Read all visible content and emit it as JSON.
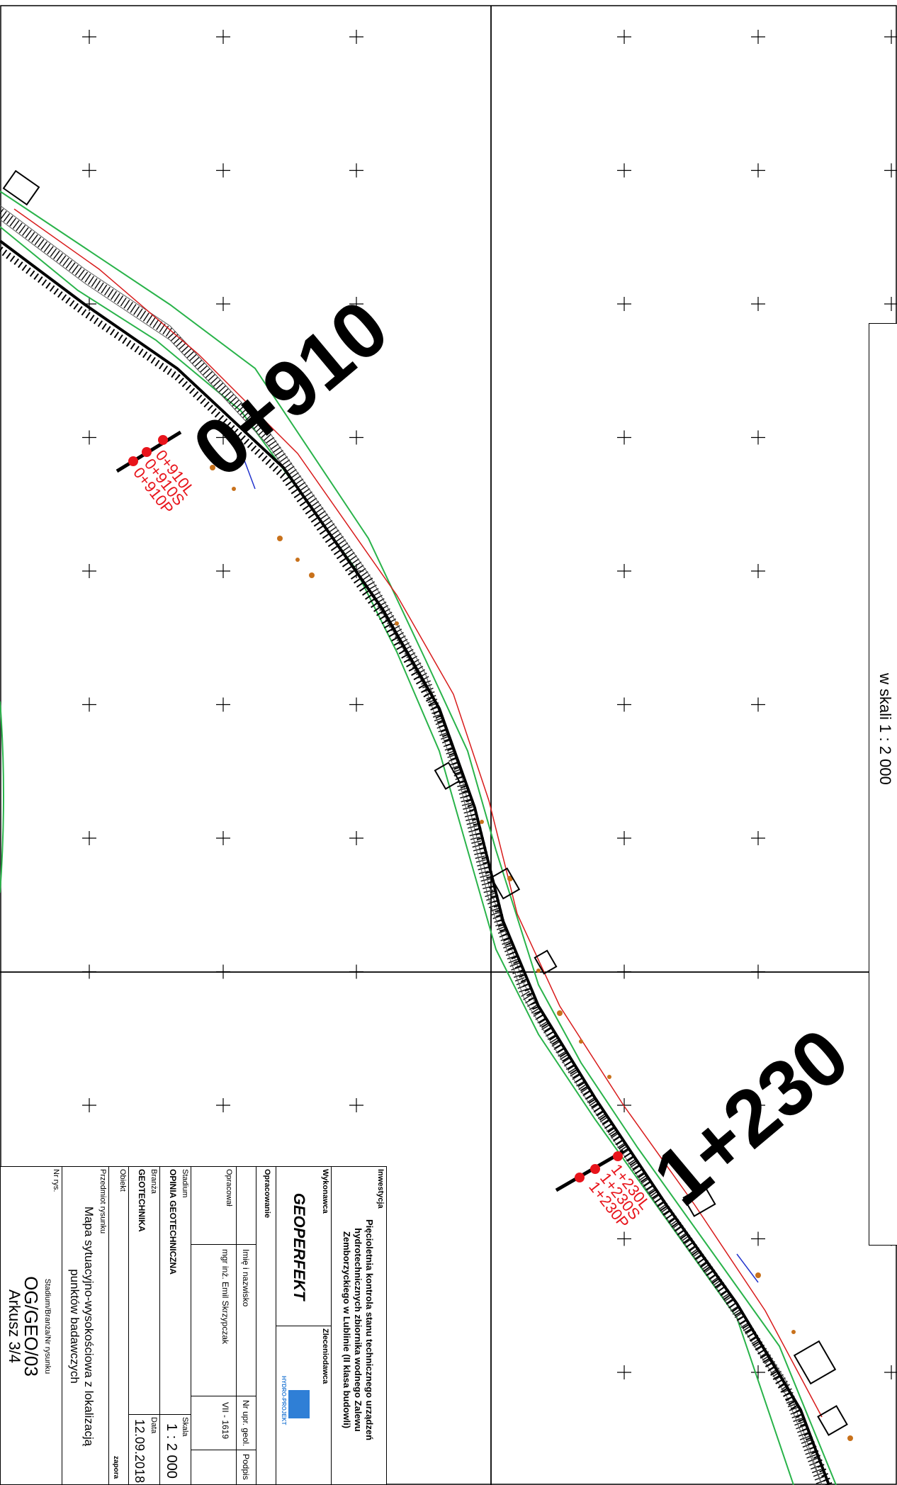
{
  "map": {
    "chainage_labels": [
      "0+910",
      "1+230"
    ],
    "profile_labels": [
      {
        "group": "0+910",
        "items": [
          "0+910L",
          "0+910S",
          "0+910P"
        ]
      },
      {
        "group": "1+230",
        "items": [
          "1+230L",
          "1+230S",
          "1+230P"
        ]
      }
    ],
    "scale_note": "w skali 1 : 2 000",
    "colors": {
      "chainage": "#000000",
      "profile": "#e8141b",
      "green": "#29b34a",
      "orange": "#c8711b",
      "blue": "#2233cc",
      "red_line": "#d81b1b"
    }
  },
  "title_block": {
    "investment_label": "Inwestycja",
    "investment_text": [
      "Pięcioletnia kontrola stanu technicznego urządzeń",
      "hydrotechnicznych zbiornika wodnego Zalewu",
      "Zemborzyckiego w Lublinie (II klasa budowli)"
    ],
    "contractor_label": "Wykonawca",
    "contractor_name": "GEOPERFEKT",
    "client_label": "Zleceniodawca",
    "client_logo_text": "HYDRO-PROJEKT",
    "prepared_label": "Opracowanie",
    "name_header": "Imię i nazwisko",
    "license_header": "Nr upr. geol.",
    "signature_header": "Podpis",
    "author_role": "Opracował",
    "author_name": "mgr inż. Emil Skrzypczak",
    "author_license": "VII - 1619",
    "stage_label": "Stadium",
    "stage_value": "OPINIA GEOTECHNICZNA",
    "scale_label": "Skala",
    "scale_value": "1 : 2 000",
    "branch_label": "Branża",
    "branch_value": "GEOTECHNIKA",
    "date_label": "Data",
    "date_value": "12.09.2018",
    "object_label": "Obiekt",
    "object_value": "zapora",
    "subject_label": "Przedmiot rysunku",
    "subject_value": [
      "Mapa sytuacyjno-wysokościowa z lokalizacją",
      "punktów badawczych"
    ],
    "number_label": "Nr rys.",
    "number_sublabel": "Stadium/Branża/Nr rysunku",
    "number_value": "OG/GEO/03",
    "sheet_value": "Arkusz 3/4"
  }
}
